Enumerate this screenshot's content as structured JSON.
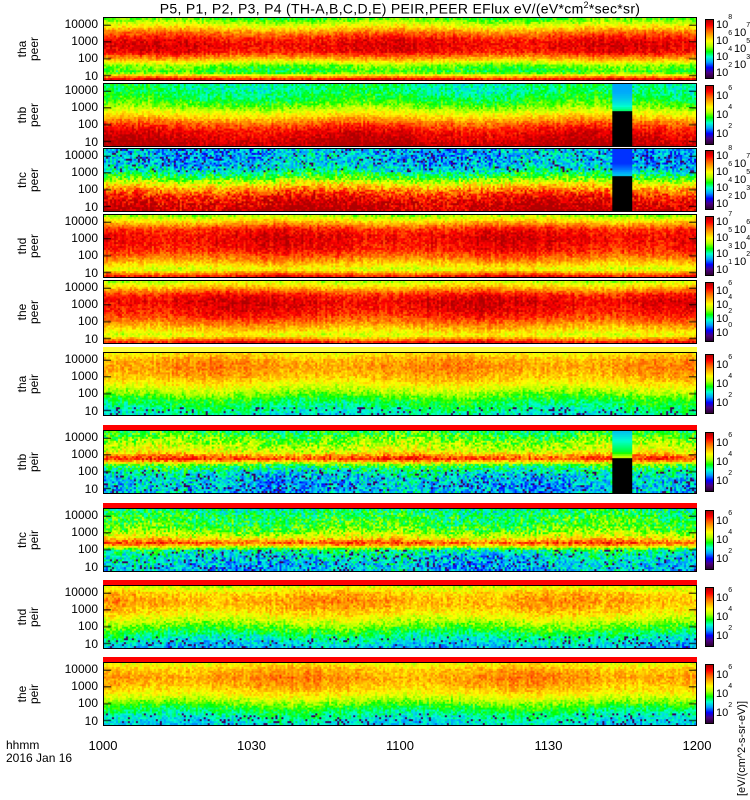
{
  "chart_data": {
    "type": "heatmap",
    "title": "P5, P1, P2, P3, P4 (TH-A,B,C,D,E) PEIR,PEER EFlux eV/(eV*cm2*sec*sr)",
    "title_parts": {
      "main": "P5, P1, P2, P3, P4 (TH-A,B,C,D,E) PEIR,PEER EFlux eV/(eV*cm",
      "sup": "2",
      "tail": "*sec*sr)"
    },
    "xlabel": "hhmm",
    "date_label": "2016 Jan 16",
    "x_range_hhmm": [
      1000,
      1200
    ],
    "x_ticks": [
      {
        "label": "1000",
        "minutes": 0
      },
      {
        "label": "1030",
        "minutes": 30
      },
      {
        "label": "1100",
        "minutes": 60
      },
      {
        "label": "1130",
        "minutes": 90
      },
      {
        "label": "1200",
        "minutes": 120
      }
    ],
    "y_ticks": [
      "10",
      "100",
      "1000",
      "10000"
    ],
    "y_range_eV": [
      5,
      25000
    ],
    "colorbar_unit": "[eV/(cm^2-s-sr-eV)]",
    "colormap": [
      "#2a0030",
      "#4b0080",
      "#0000ff",
      "#00a0ff",
      "#00ffd0",
      "#00ff00",
      "#b0ff00",
      "#ffff00",
      "#ffb000",
      "#ff6000",
      "#ff0000",
      "#b00000"
    ],
    "panels": [
      {
        "probe": "tha",
        "species": "peer",
        "cbar_ticks": [
          "2",
          "3",
          "4",
          "5",
          "6",
          "7",
          "8"
        ],
        "flux_level_profile": [
          0.9,
          0.45,
          0.5,
          0.72,
          0.9,
          0.93,
          0.9,
          0.78,
          0.62,
          0.48
        ],
        "noise": 0.06
      },
      {
        "probe": "thb",
        "species": "peer",
        "cbar_ticks": [
          "2",
          "4",
          "6"
        ],
        "flux_level_profile": [
          0.99,
          0.96,
          0.92,
          0.84,
          0.72,
          0.6,
          0.5,
          0.44,
          0.4,
          0.4
        ],
        "noise": 0.06,
        "dropout_minutes": [
          103,
          107
        ]
      },
      {
        "probe": "thc",
        "species": "peer",
        "cbar_ticks": [
          "2",
          "3",
          "4",
          "5",
          "6",
          "7",
          "8"
        ],
        "flux_level_profile": [
          0.99,
          0.96,
          0.9,
          0.78,
          0.62,
          0.46,
          0.36,
          0.3,
          0.3,
          0.3
        ],
        "noise": 0.1,
        "dropout_minutes": [
          103,
          107
        ]
      },
      {
        "probe": "thd",
        "species": "peer",
        "cbar_ticks": [
          "1",
          "2",
          "3",
          "4",
          "5",
          "6",
          "7"
        ],
        "flux_level_profile": [
          0.9,
          0.6,
          0.72,
          0.82,
          0.9,
          0.92,
          0.93,
          0.88,
          0.72,
          0.55
        ],
        "noise": 0.06
      },
      {
        "probe": "the",
        "species": "peer",
        "cbar_ticks": [
          "0",
          "2",
          "4",
          "6"
        ],
        "flux_level_profile": [
          0.9,
          0.6,
          0.7,
          0.8,
          0.88,
          0.92,
          0.94,
          0.9,
          0.74,
          0.58
        ],
        "noise": 0.06
      },
      {
        "probe": "tha",
        "species": "peir",
        "cbar_ticks": [
          "2",
          "4",
          "6"
        ],
        "flux_level_profile": [
          0.36,
          0.4,
          0.44,
          0.52,
          0.6,
          0.68,
          0.73,
          0.76,
          0.74,
          0.66
        ],
        "noise": 0.06
      },
      {
        "probe": "thb",
        "species": "peir",
        "cbar_ticks": [
          "2",
          "4",
          "6"
        ],
        "flux_level_profile": [
          0.3,
          0.3,
          0.32,
          0.36,
          0.46,
          0.88,
          0.62,
          0.56,
          0.5,
          0.44
        ],
        "noise": 0.1,
        "dropout_minutes": [
          103,
          107
        ]
      },
      {
        "probe": "thc",
        "species": "peir",
        "cbar_ticks": [
          "2",
          "4",
          "6"
        ],
        "flux_level_profile": [
          0.3,
          0.32,
          0.34,
          0.4,
          0.85,
          0.6,
          0.5,
          0.46,
          0.44,
          0.4
        ],
        "noise": 0.1
      },
      {
        "probe": "thd",
        "species": "peir",
        "cbar_ticks": [
          "2",
          "4",
          "6"
        ],
        "flux_level_profile": [
          0.3,
          0.36,
          0.42,
          0.5,
          0.58,
          0.66,
          0.72,
          0.74,
          0.7,
          0.6
        ],
        "noise": 0.07
      },
      {
        "probe": "the",
        "species": "peir",
        "cbar_ticks": [
          "2",
          "4",
          "6"
        ],
        "flux_level_profile": [
          0.33,
          0.37,
          0.42,
          0.5,
          0.6,
          0.68,
          0.73,
          0.76,
          0.72,
          0.64
        ],
        "noise": 0.06
      }
    ]
  }
}
